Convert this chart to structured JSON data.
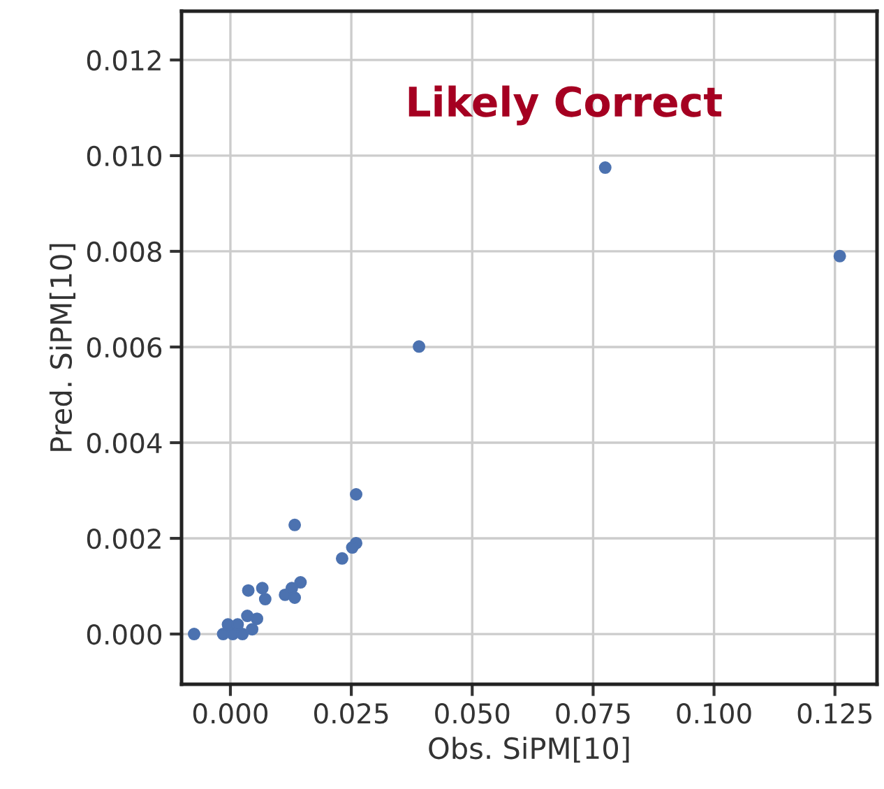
{
  "chart_data": {
    "type": "scatter",
    "xlabel": "Obs. SiPM[10]",
    "ylabel": "Pred. SiPM[10]",
    "annotations": [
      "Likely Correct"
    ],
    "xlim": [
      -0.0101,
      0.1337
    ],
    "ylim": [
      -0.00105,
      0.01302
    ],
    "xticks": [
      {
        "value": 0,
        "label": "0.000"
      },
      {
        "value": 0.025,
        "label": "0.025"
      },
      {
        "value": 0.05,
        "label": "0.050"
      },
      {
        "value": 0.075,
        "label": "0.075"
      },
      {
        "value": 0.1,
        "label": "0.100"
      },
      {
        "value": 0.125,
        "label": "0.125"
      }
    ],
    "yticks": [
      {
        "value": 0,
        "label": "0.000"
      },
      {
        "value": 0.002,
        "label": "0.002"
      },
      {
        "value": 0.004,
        "label": "0.004"
      },
      {
        "value": 0.006,
        "label": "0.006"
      },
      {
        "value": 0.008,
        "label": "0.008"
      },
      {
        "value": 0.01,
        "label": "0.010"
      },
      {
        "value": 0.012,
        "label": "0.012"
      }
    ],
    "grid": true,
    "marker": "circle",
    "series": [
      {
        "color": "#4c72b0",
        "x": [
          -0.0075,
          0.039,
          0.0775,
          0.126,
          0.026,
          0.0133,
          0.026,
          0.0252,
          0.0231,
          0.0145,
          0.0127,
          0.0113,
          0.0133,
          0.0037,
          0.0066,
          0.0072,
          0.0055,
          0.0035,
          -0.0015,
          0.0005,
          0.0025,
          0.0045,
          -0.0005,
          0.0015
        ],
        "values": [
          0.0,
          0.00601,
          0.00975,
          0.0079,
          0.00292,
          0.00228,
          0.0019,
          0.00181,
          0.00158,
          0.00108,
          0.00096,
          0.00082,
          0.00076,
          0.00091,
          0.00096,
          0.00073,
          0.00032,
          0.00038,
          0.0,
          0.0,
          0.0,
          0.0001,
          0.0002,
          0.0002
        ]
      }
    ]
  }
}
